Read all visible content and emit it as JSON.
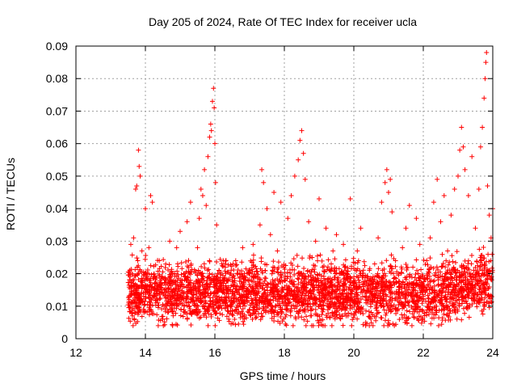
{
  "chart_data": {
    "type": "scatter",
    "title": "Day 205 of 2024, Rate Of TEC Index for receiver ucla",
    "xlabel": "GPS time / hours",
    "ylabel": "ROTI / TECUs",
    "xlim": [
      12,
      24
    ],
    "ylim": [
      0,
      0.09
    ],
    "x_ticks": [
      12,
      14,
      16,
      18,
      20,
      22,
      24
    ],
    "x_tick_labels": [
      "12",
      "14",
      "16",
      "18",
      "20",
      "22",
      "24"
    ],
    "y_ticks": [
      0,
      0.01,
      0.02,
      0.03,
      0.04,
      0.05,
      0.06,
      0.07,
      0.08,
      0.09
    ],
    "y_tick_labels": [
      "0",
      "0.01",
      "0.02",
      "0.03",
      "0.04",
      "0.05",
      "0.06",
      "0.07",
      "0.08",
      "0.09"
    ],
    "grid": true,
    "marker": "plus",
    "color": "#ff0000",
    "series": [
      {
        "name": "ROTI",
        "points": [
          [
            13.52,
            0.011
          ],
          [
            13.55,
            0.021
          ],
          [
            13.58,
            0.029
          ],
          [
            13.6,
            0.014
          ],
          [
            13.63,
            0.018
          ],
          [
            13.66,
            0.031
          ],
          [
            13.7,
            0.012
          ],
          [
            13.72,
            0.046
          ],
          [
            13.75,
            0.047
          ],
          [
            13.78,
            0.024
          ],
          [
            13.8,
            0.058
          ],
          [
            13.82,
            0.053
          ],
          [
            13.85,
            0.05
          ],
          [
            13.88,
            0.016
          ],
          [
            13.9,
            0.027
          ],
          [
            13.95,
            0.013
          ],
          [
            14.0,
            0.04
          ],
          [
            14.05,
            0.019
          ],
          [
            14.1,
            0.028
          ],
          [
            14.15,
            0.044
          ],
          [
            14.2,
            0.042
          ],
          [
            14.25,
            0.015
          ],
          [
            14.3,
            0.011
          ],
          [
            14.4,
            0.024
          ],
          [
            14.5,
            0.006
          ],
          [
            14.6,
            0.018
          ],
          [
            14.7,
            0.03
          ],
          [
            14.8,
            0.015
          ],
          [
            14.9,
            0.028
          ],
          [
            15.0,
            0.033
          ],
          [
            15.1,
            0.02
          ],
          [
            15.2,
            0.036
          ],
          [
            15.3,
            0.042
          ],
          [
            15.4,
            0.016
          ],
          [
            15.5,
            0.028
          ],
          [
            15.55,
            0.037
          ],
          [
            15.6,
            0.046
          ],
          [
            15.65,
            0.044
          ],
          [
            15.7,
            0.052
          ],
          [
            15.75,
            0.041
          ],
          [
            15.8,
            0.056
          ],
          [
            15.85,
            0.062
          ],
          [
            15.88,
            0.066
          ],
          [
            15.9,
            0.064
          ],
          [
            15.93,
            0.073
          ],
          [
            15.96,
            0.077
          ],
          [
            15.98,
            0.071
          ],
          [
            16.0,
            0.06
          ],
          [
            16.02,
            0.048
          ],
          [
            16.05,
            0.035
          ],
          [
            16.1,
            0.018
          ],
          [
            16.2,
            0.012
          ],
          [
            16.3,
            0.022
          ],
          [
            16.4,
            0.006
          ],
          [
            16.5,
            0.018
          ],
          [
            16.6,
            0.024
          ],
          [
            16.7,
            0.015
          ],
          [
            16.8,
            0.028
          ],
          [
            16.9,
            0.013
          ],
          [
            17.0,
            0.021
          ],
          [
            17.1,
            0.029
          ],
          [
            17.2,
            0.009
          ],
          [
            17.3,
            0.035
          ],
          [
            17.35,
            0.052
          ],
          [
            17.4,
            0.048
          ],
          [
            17.5,
            0.04
          ],
          [
            17.6,
            0.032
          ],
          [
            17.7,
            0.045
          ],
          [
            17.8,
            0.027
          ],
          [
            17.9,
            0.042
          ],
          [
            18.0,
            0.018
          ],
          [
            18.1,
            0.037
          ],
          [
            18.2,
            0.044
          ],
          [
            18.3,
            0.05
          ],
          [
            18.4,
            0.055
          ],
          [
            18.45,
            0.061
          ],
          [
            18.5,
            0.064
          ],
          [
            18.55,
            0.057
          ],
          [
            18.6,
            0.049
          ],
          [
            18.7,
            0.036
          ],
          [
            18.8,
            0.025
          ],
          [
            18.9,
            0.03
          ],
          [
            19.0,
            0.043
          ],
          [
            19.1,
            0.022
          ],
          [
            19.2,
            0.034
          ],
          [
            19.3,
            0.016
          ],
          [
            19.4,
            0.027
          ],
          [
            19.5,
            0.032
          ],
          [
            19.6,
            0.014
          ],
          [
            19.7,
            0.029
          ],
          [
            19.8,
            0.02
          ],
          [
            19.9,
            0.043
          ],
          [
            20.0,
            0.011
          ],
          [
            20.1,
            0.027
          ],
          [
            20.2,
            0.034
          ],
          [
            20.3,
            0.015
          ],
          [
            20.4,
            0.019
          ],
          [
            20.5,
            0.008
          ],
          [
            20.6,
            0.023
          ],
          [
            20.7,
            0.031
          ],
          [
            20.8,
            0.042
          ],
          [
            20.9,
            0.048
          ],
          [
            20.95,
            0.052
          ],
          [
            21.0,
            0.045
          ],
          [
            21.05,
            0.049
          ],
          [
            21.1,
            0.039
          ],
          [
            21.2,
            0.024
          ],
          [
            21.3,
            0.017
          ],
          [
            21.4,
            0.028
          ],
          [
            21.5,
            0.034
          ],
          [
            21.6,
            0.041
          ],
          [
            21.7,
            0.022
          ],
          [
            21.8,
            0.037
          ],
          [
            21.9,
            0.029
          ],
          [
            22.0,
            0.013
          ],
          [
            22.1,
            0.024
          ],
          [
            22.2,
            0.031
          ],
          [
            22.3,
            0.042
          ],
          [
            22.4,
            0.049
          ],
          [
            22.5,
            0.036
          ],
          [
            22.6,
            0.044
          ],
          [
            22.7,
            0.027
          ],
          [
            22.8,
            0.038
          ],
          [
            22.9,
            0.046
          ],
          [
            23.0,
            0.05
          ],
          [
            23.05,
            0.058
          ],
          [
            23.1,
            0.065
          ],
          [
            23.15,
            0.059
          ],
          [
            23.2,
            0.052
          ],
          [
            23.3,
            0.044
          ],
          [
            23.4,
            0.056
          ],
          [
            23.5,
            0.034
          ],
          [
            23.6,
            0.046
          ],
          [
            23.65,
            0.059
          ],
          [
            23.7,
            0.065
          ],
          [
            23.75,
            0.074
          ],
          [
            23.78,
            0.08
          ],
          [
            23.8,
            0.085
          ],
          [
            23.82,
            0.088
          ],
          [
            23.85,
            0.047
          ],
          [
            23.9,
            0.038
          ],
          [
            23.95,
            0.031
          ],
          [
            24.0,
            0.04
          ]
        ],
        "dense_band": {
          "x_range": [
            13.5,
            24.0
          ],
          "y_range": [
            0.004,
            0.03
          ],
          "note": "thousands of red + markers forming a continuous band of ROTI values"
        }
      }
    ]
  }
}
